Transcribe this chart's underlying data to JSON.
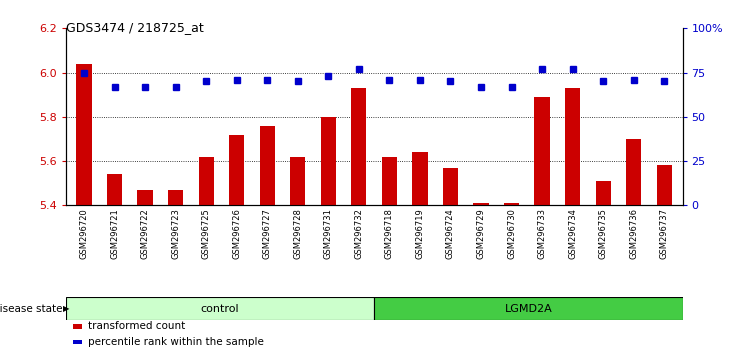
{
  "title": "GDS3474 / 218725_at",
  "samples": [
    "GSM296720",
    "GSM296721",
    "GSM296722",
    "GSM296723",
    "GSM296725",
    "GSM296726",
    "GSM296727",
    "GSM296728",
    "GSM296731",
    "GSM296732",
    "GSM296718",
    "GSM296719",
    "GSM296724",
    "GSM296729",
    "GSM296730",
    "GSM296733",
    "GSM296734",
    "GSM296735",
    "GSM296736",
    "GSM296737"
  ],
  "bar_values": [
    6.04,
    5.54,
    5.47,
    5.47,
    5.62,
    5.72,
    5.76,
    5.62,
    5.8,
    5.93,
    5.62,
    5.64,
    5.57,
    5.41,
    5.41,
    5.89,
    5.93,
    5.51,
    5.7,
    5.58
  ],
  "percentile_values": [
    75,
    67,
    67,
    67,
    70,
    71,
    71,
    70,
    73,
    77,
    71,
    71,
    70,
    67,
    67,
    77,
    77,
    70,
    71,
    70
  ],
  "bar_color": "#cc0000",
  "dot_color": "#0000cc",
  "ylim_left": [
    5.4,
    6.2
  ],
  "ylim_right": [
    0,
    100
  ],
  "yticks_left": [
    5.4,
    5.6,
    5.8,
    6.0,
    6.2
  ],
  "yticks_right": [
    0,
    25,
    50,
    75,
    100
  ],
  "ytick_labels_right": [
    "0",
    "25",
    "50",
    "75",
    "100%"
  ],
  "grid_lines": [
    6.0,
    5.8,
    5.6
  ],
  "control_label": "control",
  "lgmd_label": "LGMD2A",
  "control_count": 10,
  "disease_state_label": "disease state",
  "legend_bar_label": "transformed count",
  "legend_dot_label": "percentile rank within the sample",
  "background_color": "#ffffff",
  "plot_bg_color": "#ffffff",
  "label_color_left": "#cc0000",
  "label_color_right": "#0000cc",
  "control_bg": "#ccffcc",
  "lgmd_bg": "#44cc44"
}
